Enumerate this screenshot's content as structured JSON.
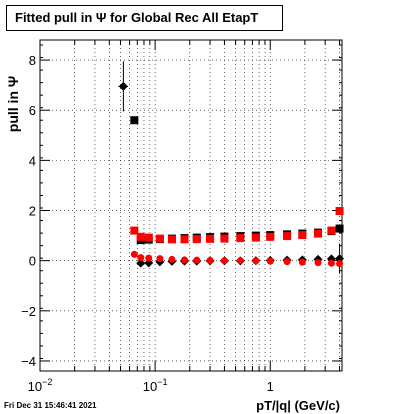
{
  "title": "Fitted pull in Ψ for Global Rec All EtapT",
  "timestamp": "Fri Dec 31 15:46:41 2021",
  "chart_data": {
    "type": "scatter",
    "title": "Fitted pull in Ψ for Global Rec All EtapT",
    "xlabel": "pT/|q| (GeV/c)",
    "ylabel": "pull in Ψ",
    "xscale": "log",
    "xlim": [
      0.01,
      4.2
    ],
    "ylim": [
      -4.4,
      8.8
    ],
    "grid": true,
    "x_ticks": [
      {
        "value": 0.01,
        "base": "10",
        "exp": "−2"
      },
      {
        "value": 0.1,
        "base": "10",
        "exp": "−1"
      },
      {
        "value": 1,
        "base": "1",
        "exp": ""
      }
    ],
    "y_ticks": [
      -4,
      -2,
      0,
      2,
      4,
      6,
      8
    ],
    "y_tick_labels": [
      "−4",
      "−2",
      "0",
      "2",
      "4",
      "6",
      "8"
    ],
    "series": [
      {
        "color": "#000000",
        "marker": "diamond",
        "points": [
          {
            "x": 0.053,
            "y": 6.95,
            "yerr": 1.0,
            "xerr_lo": 0.005,
            "xerr_hi": 0.005
          },
          {
            "x": 0.075,
            "y": -0.1
          },
          {
            "x": 0.088,
            "y": -0.09
          },
          {
            "x": 0.11,
            "y": -0.05
          },
          {
            "x": 0.14,
            "y": -0.03
          },
          {
            "x": 0.18,
            "y": -0.02
          },
          {
            "x": 0.23,
            "y": -0.02
          },
          {
            "x": 0.3,
            "y": -0.01
          },
          {
            "x": 0.4,
            "y": -0.01
          },
          {
            "x": 0.55,
            "y": -0.01
          },
          {
            "x": 0.75,
            "y": 0.0
          },
          {
            "x": 1.0,
            "y": 0.01
          },
          {
            "x": 1.4,
            "y": 0.02
          },
          {
            "x": 1.9,
            "y": 0.03
          },
          {
            "x": 2.6,
            "y": 0.05
          },
          {
            "x": 3.4,
            "y": 0.07
          },
          {
            "x": 4.0,
            "y": 0.08,
            "yerr": 0.6
          }
        ]
      },
      {
        "color": "#000000",
        "marker": "square",
        "points": [
          {
            "x": 0.066,
            "y": 5.6
          },
          {
            "x": 0.075,
            "y": 0.82
          },
          {
            "x": 0.088,
            "y": 0.84
          },
          {
            "x": 0.11,
            "y": 0.86
          },
          {
            "x": 0.14,
            "y": 0.88
          },
          {
            "x": 0.18,
            "y": 0.9
          },
          {
            "x": 0.23,
            "y": 0.92
          },
          {
            "x": 0.3,
            "y": 0.94
          },
          {
            "x": 0.4,
            "y": 0.96
          },
          {
            "x": 0.55,
            "y": 0.98
          },
          {
            "x": 0.75,
            "y": 1.0
          },
          {
            "x": 1.0,
            "y": 1.02
          },
          {
            "x": 1.4,
            "y": 1.05
          },
          {
            "x": 1.9,
            "y": 1.08
          },
          {
            "x": 2.6,
            "y": 1.12
          },
          {
            "x": 3.4,
            "y": 1.18
          },
          {
            "x": 4.0,
            "y": 1.28
          }
        ]
      },
      {
        "color": "#ff0000",
        "marker": "circle",
        "points": [
          {
            "x": 0.066,
            "y": 0.25
          },
          {
            "x": 0.075,
            "y": 0.12
          },
          {
            "x": 0.088,
            "y": 0.1
          },
          {
            "x": 0.11,
            "y": 0.08
          },
          {
            "x": 0.14,
            "y": 0.05
          },
          {
            "x": 0.18,
            "y": 0.03
          },
          {
            "x": 0.23,
            "y": 0.02
          },
          {
            "x": 0.3,
            "y": 0.01
          },
          {
            "x": 0.4,
            "y": 0.0
          },
          {
            "x": 0.55,
            "y": 0.0
          },
          {
            "x": 0.75,
            "y": 0.0
          },
          {
            "x": 1.0,
            "y": -0.02
          },
          {
            "x": 1.4,
            "y": -0.04
          },
          {
            "x": 1.9,
            "y": -0.06
          },
          {
            "x": 2.6,
            "y": -0.08
          },
          {
            "x": 3.4,
            "y": -0.1
          },
          {
            "x": 4.0,
            "y": -0.12
          }
        ]
      },
      {
        "color": "#ff0000",
        "marker": "square",
        "points": [
          {
            "x": 0.066,
            "y": 1.2
          },
          {
            "x": 0.075,
            "y": 0.95
          },
          {
            "x": 0.088,
            "y": 0.92
          },
          {
            "x": 0.11,
            "y": 0.88
          },
          {
            "x": 0.14,
            "y": 0.85
          },
          {
            "x": 0.18,
            "y": 0.85
          },
          {
            "x": 0.23,
            "y": 0.86
          },
          {
            "x": 0.3,
            "y": 0.87
          },
          {
            "x": 0.4,
            "y": 0.88
          },
          {
            "x": 0.55,
            "y": 0.9
          },
          {
            "x": 0.75,
            "y": 0.92
          },
          {
            "x": 1.0,
            "y": 0.95
          },
          {
            "x": 1.4,
            "y": 0.98
          },
          {
            "x": 1.9,
            "y": 1.02
          },
          {
            "x": 2.6,
            "y": 1.08
          },
          {
            "x": 3.4,
            "y": 1.2
          },
          {
            "x": 4.0,
            "y": 1.98
          }
        ]
      }
    ]
  }
}
